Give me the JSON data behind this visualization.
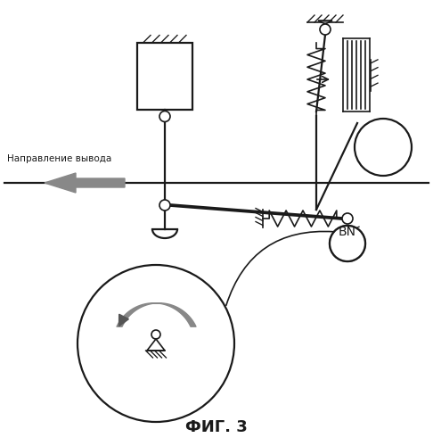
{
  "title": "ФИГ. 3",
  "label_direction": "Направление вывода",
  "label_bn": "BN",
  "bg_color": "#ffffff",
  "line_color": "#1a1a1a"
}
